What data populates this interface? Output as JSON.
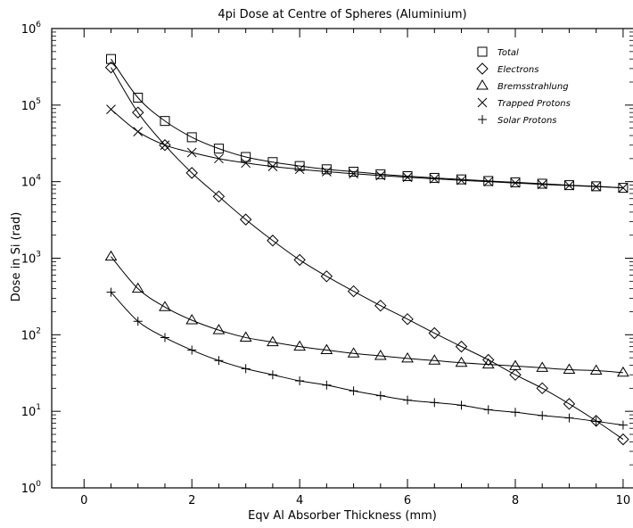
{
  "chart_data": {
    "type": "line",
    "title": "4pi Dose at Centre of Spheres (Aluminium)",
    "xlabel": "Eqv Al Absorber Thickness (mm)",
    "ylabel": "Dose in Si (rad)",
    "xlim": [
      -0.6,
      10.2
    ],
    "ylim": [
      1,
      1000000
    ],
    "yscale": "log",
    "x_ticks": [
      "0",
      "2",
      "4",
      "6",
      "8",
      "10"
    ],
    "y_ticks": [
      "10",
      "10",
      "10",
      "10",
      "10",
      "10",
      "10"
    ],
    "y_tick_exponents": [
      "0",
      "1",
      "2",
      "3",
      "4",
      "5",
      "6"
    ],
    "grid": false,
    "legend_position": "top-right",
    "x": [
      0.5,
      1.0,
      1.5,
      2.0,
      2.5,
      3.0,
      3.5,
      4.0,
      4.5,
      5.0,
      5.5,
      6.0,
      6.5,
      7.0,
      7.5,
      8.0,
      8.5,
      9.0,
      9.5,
      10.0
    ],
    "series": [
      {
        "name": "Total",
        "marker": "square",
        "values": [
          400000,
          125000,
          62000,
          38000,
          27000,
          21000,
          18000,
          16000,
          14500,
          13500,
          12500,
          11800,
          11200,
          10700,
          10200,
          9800,
          9400,
          9000,
          8700,
          8300
        ]
      },
      {
        "name": "Electrons",
        "marker": "diamond",
        "values": [
          310000,
          80000,
          30000,
          13000,
          6400,
          3200,
          1700,
          950,
          580,
          370,
          240,
          160,
          105,
          70,
          47,
          30,
          20,
          12.5,
          7.5,
          4.3
        ]
      },
      {
        "name": "Bremsstrahlung",
        "marker": "triangle",
        "values": [
          1050,
          400,
          230,
          155,
          115,
          92,
          80,
          70,
          63,
          57,
          53,
          49,
          46,
          43,
          41,
          39,
          37,
          35,
          34,
          32
        ]
      },
      {
        "name": "Trapped Protons",
        "marker": "cross",
        "values": [
          88000,
          45000,
          30000,
          24000,
          20000,
          17500,
          15800,
          14500,
          13500,
          12700,
          12000,
          11400,
          10900,
          10400,
          10000,
          9600,
          9200,
          8900,
          8600,
          8300
        ]
      },
      {
        "name": "Solar Protons",
        "marker": "plus",
        "values": [
          360,
          150,
          92,
          63,
          46,
          36,
          30,
          25,
          22,
          18.5,
          16,
          14,
          13,
          12,
          10.5,
          9.7,
          8.8,
          8.2,
          7.4,
          6.6
        ]
      }
    ]
  }
}
